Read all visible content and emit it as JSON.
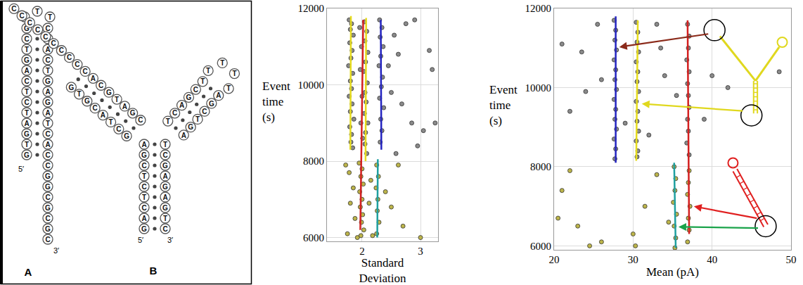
{
  "diagram": {
    "molecules": [
      {
        "label": "A",
        "five_prime": "5′",
        "three_prime": "3′",
        "loop": [
          "T",
          "T",
          "T"
        ],
        "stem": [
          [
            "G",
            "C"
          ],
          [
            "C",
            "G"
          ],
          [
            "T",
            "A"
          ],
          [
            "G",
            "C"
          ],
          [
            "A",
            "T"
          ],
          [
            "C",
            "G"
          ],
          [
            "T",
            "A"
          ],
          [
            "C",
            "G"
          ],
          [
            "T",
            "A"
          ],
          [
            "A",
            "T"
          ],
          [
            "G",
            "C"
          ],
          [
            "T",
            "A"
          ],
          [
            "G",
            "C"
          ]
        ],
        "tail": [
          "C",
          "G",
          "G",
          "C",
          "G",
          "C",
          "G",
          "C"
        ]
      },
      {
        "label": "B",
        "five_prime": "5′",
        "three_prime": "3′",
        "stem": [
          [
            "A",
            "T"
          ],
          [
            "G",
            "C"
          ],
          [
            "C",
            "G"
          ],
          [
            "T",
            "A"
          ],
          [
            "C",
            "G"
          ],
          [
            "T",
            "A"
          ],
          [
            "C",
            "G"
          ],
          [
            "A",
            "T"
          ],
          [
            "G",
            "C"
          ]
        ],
        "left_arm": [
          [
            "G",
            "C"
          ],
          [
            "C",
            "G"
          ],
          [
            "T",
            "A"
          ],
          [
            "A",
            "T"
          ],
          [
            "C",
            "G"
          ],
          [
            "G",
            "C"
          ],
          [
            "T",
            "A"
          ],
          [
            "G",
            "C"
          ]
        ],
        "tail": [
          "C",
          "C",
          "C",
          "C",
          "C",
          "C",
          "C",
          "C",
          "C"
        ],
        "right_arm": [
          [
            "T",
            "A"
          ],
          [
            "C",
            "G"
          ],
          [
            "A",
            "T"
          ],
          [
            "G",
            "C"
          ],
          [
            "C",
            "G"
          ],
          [
            "T",
            "A"
          ]
        ],
        "loop": [
          "T",
          "T",
          "T",
          "T"
        ]
      }
    ]
  },
  "chart_data": [
    {
      "type": "scatter",
      "x_label": "Standard Deviation",
      "y_label": "Event time (s)",
      "xlim": [
        1.4,
        3.3
      ],
      "xticks": [
        2,
        3
      ],
      "ylim": [
        5900,
        12000
      ],
      "yticks": [
        6000,
        8000,
        10000,
        12000
      ],
      "grid": true,
      "series": [
        {
          "type": "scatter",
          "color": "#8a8a8a",
          "marker": "circle",
          "x": [
            1.78,
            1.82,
            1.8,
            1.85,
            1.79,
            1.83,
            1.81,
            1.77,
            1.84,
            1.8,
            1.82,
            1.78,
            1.83,
            1.8,
            1.86,
            1.79,
            1.82,
            1.81,
            1.84,
            2.04,
            2.08,
            2.05,
            2.1,
            2.06,
            2.03,
            2.09,
            2.05,
            2.07,
            2.04,
            2.1,
            2.06,
            2.05,
            2.08,
            1.96,
            1.99,
            1.97,
            2.0,
            1.98,
            2.01,
            2.3,
            2.34,
            2.31,
            2.36,
            2.32,
            2.29,
            2.35,
            2.33,
            2.3,
            2.37,
            2.32,
            2.34,
            2.31,
            2.55,
            2.62,
            2.75,
            2.9,
            2.85,
            3.15,
            3.2,
            3.25,
            3.05,
            2.5,
            2.68,
            2.45,
            2.95,
            2.58
          ],
          "values": [
            11700,
            11600,
            11450,
            11300,
            11100,
            10900,
            10700,
            10500,
            10300,
            10100,
            9900,
            9700,
            9500,
            9300,
            9100,
            8900,
            8700,
            8500,
            8350,
            11650,
            11400,
            11150,
            10850,
            10600,
            10350,
            10050,
            9800,
            9550,
            9250,
            9000,
            8750,
            8450,
            8200,
            11500,
            11000,
            10400,
            9700,
            9000,
            8600,
            11700,
            11500,
            11250,
            11000,
            10750,
            10500,
            10200,
            9950,
            9650,
            9400,
            9100,
            8800,
            8500,
            11300,
            10800,
            11600,
            11700,
            9000,
            10900,
            10400,
            9000,
            8800,
            9800,
            9500,
            10500,
            8400,
            8200
          ]
        },
        {
          "type": "scatter",
          "color": "#bdb54a",
          "marker": "circle",
          "x": [
            1.72,
            1.78,
            1.95,
            2.0,
            1.98,
            2.02,
            1.96,
            2.0,
            1.97,
            2.01,
            1.99,
            2.03,
            1.98,
            2.25,
            2.28,
            2.24,
            2.27,
            2.26,
            2.29,
            2.25,
            2.15,
            2.12,
            1.85,
            1.8,
            1.88,
            1.75,
            2.4,
            2.5,
            2.62,
            2.7,
            1.92,
            2.18,
            3.0
          ],
          "values": [
            7900,
            7700,
            7950,
            7800,
            7600,
            7400,
            7200,
            7000,
            6800,
            6600,
            6400,
            6200,
            6050,
            7900,
            7600,
            7300,
            7000,
            6700,
            6400,
            6100,
            7500,
            6900,
            7300,
            6900,
            6500,
            6100,
            7200,
            6800,
            7900,
            6300,
            6000,
            6050,
            6000
          ]
        },
        {
          "type": "line",
          "color": "#e6dc1e",
          "line_style": "solid",
          "x": [
            1.8,
            1.81
          ],
          "values": [
            8300,
            11800
          ]
        },
        {
          "type": "line",
          "color": "#e6dc1e",
          "line_style": "solid",
          "x": [
            2.06,
            2.07
          ],
          "values": [
            8000,
            11750
          ]
        },
        {
          "type": "line",
          "color": "#d42020",
          "line_style": "solid",
          "x": [
            1.97,
            2.02
          ],
          "values": [
            6200,
            11700
          ]
        },
        {
          "type": "line",
          "color": "#2424c0",
          "line_style": "solid",
          "x": [
            2.33,
            2.32
          ],
          "values": [
            8300,
            11700
          ]
        },
        {
          "type": "line",
          "color": "#1fa0a0",
          "line_style": "solid",
          "x": [
            2.26,
            2.27
          ],
          "values": [
            6000,
            8050
          ]
        }
      ]
    },
    {
      "type": "scatter",
      "x_label": "Mean (pA)",
      "y_label": "Event time (s)",
      "xlim": [
        20,
        50
      ],
      "xticks": [
        20,
        30,
        40,
        50
      ],
      "ylim": [
        5900,
        12000
      ],
      "yticks": [
        6000,
        8000,
        10000,
        12000
      ],
      "grid": true,
      "series": [
        {
          "type": "scatter",
          "color": "#8a8a8a",
          "marker": "circle",
          "x": [
            27.6,
            27.8,
            27.7,
            27.9,
            27.6,
            27.8,
            27.7,
            27.9,
            27.6,
            27.8,
            27.7,
            27.9,
            27.6,
            27.8,
            27.7,
            30.4,
            30.6,
            30.5,
            30.7,
            30.4,
            30.6,
            30.5,
            30.7,
            30.4,
            30.6,
            30.5,
            30.7,
            30.4,
            30.6,
            30.5,
            36.9,
            37.1,
            37.0,
            36.8,
            37.1,
            36.9,
            37.0,
            37.1,
            36.9,
            37.0,
            36.8,
            37.1,
            21,
            22,
            24,
            23.5,
            25.5,
            26,
            29,
            33,
            34,
            35.5,
            32,
            40,
            42,
            48.5,
            33.5,
            39
          ],
          "values": [
            11700,
            11450,
            11200,
            10950,
            10700,
            10450,
            10200,
            9950,
            9700,
            9450,
            9200,
            8950,
            8700,
            8450,
            8200,
            11650,
            11400,
            11150,
            10900,
            10650,
            10400,
            10150,
            9900,
            9650,
            9400,
            9150,
            8900,
            8650,
            8400,
            8250,
            11600,
            11300,
            11000,
            10700,
            10400,
            10100,
            9800,
            9500,
            9200,
            8900,
            8600,
            8300,
            11100,
            9400,
            9900,
            10900,
            11600,
            10200,
            9100,
            11600,
            10300,
            9800,
            8800,
            10300,
            10000,
            10400,
            11000,
            9200
          ]
        },
        {
          "type": "scatter",
          "color": "#bdb54a",
          "marker": "circle",
          "x": [
            35.2,
            35.4,
            35.3,
            35.1,
            35.5,
            35.2,
            35.4,
            35.3,
            37.1,
            37.0,
            36.9,
            37.2,
            37.0,
            37.1,
            36.9,
            20.5,
            21,
            22,
            23,
            26,
            30,
            31.5,
            33,
            34.5,
            30.3,
            24.5
          ],
          "values": [
            8000,
            7700,
            7400,
            7100,
            6800,
            6500,
            6200,
            5950,
            7900,
            7600,
            7300,
            7000,
            6700,
            6400,
            6100,
            6700,
            7400,
            7900,
            6500,
            6100,
            6300,
            7000,
            7800,
            6600,
            6000,
            6000
          ]
        },
        {
          "type": "line",
          "color": "#2424c0",
          "line_style": "solid",
          "x": [
            27.8,
            27.8
          ],
          "values": [
            8100,
            11800
          ]
        },
        {
          "type": "line",
          "color": "#e6dc1e",
          "line_style": "solid",
          "x": [
            30.4,
            30.6
          ],
          "values": [
            8150,
            11700
          ]
        },
        {
          "type": "line",
          "color": "#d42020",
          "line_style": "solid",
          "x": [
            37.1,
            36.9
          ],
          "values": [
            6300,
            11700
          ]
        },
        {
          "type": "line",
          "color": "#1fa0a0",
          "line_style": "solid",
          "x": [
            35.4,
            35.2
          ],
          "values": [
            5950,
            8100
          ]
        }
      ]
    }
  ]
}
